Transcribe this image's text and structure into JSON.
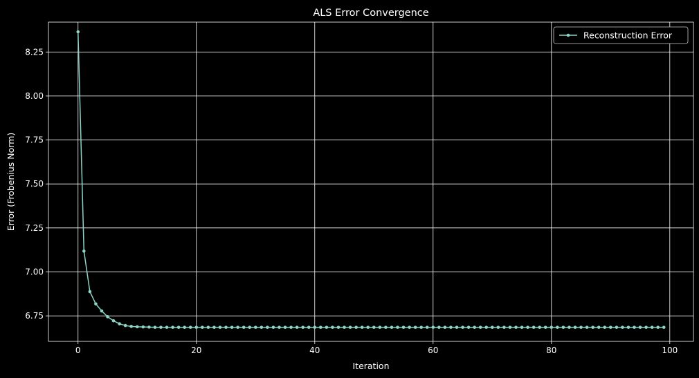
{
  "chart_data": {
    "type": "line",
    "title": "ALS Error Convergence",
    "xlabel": "Iteration",
    "ylabel": "Error (Frobenius Norm)",
    "xlim": [
      -5,
      104
    ],
    "ylim": [
      6.605,
      8.42
    ],
    "x_ticks": [
      0,
      20,
      40,
      60,
      80,
      100
    ],
    "y_ticks": [
      6.75,
      7.0,
      7.25,
      7.5,
      7.75,
      8.0,
      8.25
    ],
    "x_tick_labels": [
      "0",
      "20",
      "40",
      "60",
      "80",
      "100"
    ],
    "y_tick_labels": [
      "6.75",
      "7.00",
      "7.25",
      "7.50",
      "7.75",
      "8.00",
      "8.25"
    ],
    "grid": true,
    "legend": {
      "position": "top-right"
    },
    "colors": {
      "background": "#000000",
      "foreground": "#ffffff",
      "series": "#8dd3c7"
    },
    "series": [
      {
        "name": "Reconstruction Error",
        "marker": "circle",
        "x": [
          0,
          1,
          2,
          3,
          4,
          5,
          6,
          7,
          8,
          9,
          10,
          11,
          12,
          13,
          14,
          15,
          16,
          17,
          18,
          19,
          20,
          21,
          22,
          23,
          24,
          25,
          26,
          27,
          28,
          29,
          30,
          31,
          32,
          33,
          34,
          35,
          36,
          37,
          38,
          39,
          40,
          41,
          42,
          43,
          44,
          45,
          46,
          47,
          48,
          49,
          50,
          51,
          52,
          53,
          54,
          55,
          56,
          57,
          58,
          59,
          60,
          61,
          62,
          63,
          64,
          65,
          66,
          67,
          68,
          69,
          70,
          71,
          72,
          73,
          74,
          75,
          76,
          77,
          78,
          79,
          80,
          81,
          82,
          83,
          84,
          85,
          86,
          87,
          88,
          89,
          90,
          91,
          92,
          93,
          94,
          95,
          96,
          97,
          98,
          99
        ],
        "y": [
          8.365,
          7.118,
          6.888,
          6.818,
          6.778,
          6.745,
          6.722,
          6.705,
          6.695,
          6.69,
          6.688,
          6.687,
          6.686,
          6.685,
          6.685,
          6.685,
          6.685,
          6.685,
          6.685,
          6.685,
          6.685,
          6.685,
          6.685,
          6.685,
          6.685,
          6.685,
          6.685,
          6.685,
          6.685,
          6.685,
          6.685,
          6.685,
          6.685,
          6.685,
          6.685,
          6.685,
          6.685,
          6.685,
          6.685,
          6.685,
          6.685,
          6.685,
          6.685,
          6.685,
          6.685,
          6.685,
          6.685,
          6.685,
          6.685,
          6.685,
          6.685,
          6.685,
          6.685,
          6.685,
          6.685,
          6.685,
          6.685,
          6.685,
          6.685,
          6.685,
          6.685,
          6.685,
          6.685,
          6.685,
          6.685,
          6.685,
          6.685,
          6.685,
          6.685,
          6.685,
          6.685,
          6.685,
          6.685,
          6.685,
          6.685,
          6.685,
          6.685,
          6.685,
          6.685,
          6.685,
          6.685,
          6.685,
          6.685,
          6.685,
          6.685,
          6.685,
          6.685,
          6.685,
          6.685,
          6.685,
          6.685,
          6.685,
          6.685,
          6.685,
          6.685,
          6.685,
          6.685,
          6.685,
          6.685,
          6.685
        ]
      }
    ]
  }
}
